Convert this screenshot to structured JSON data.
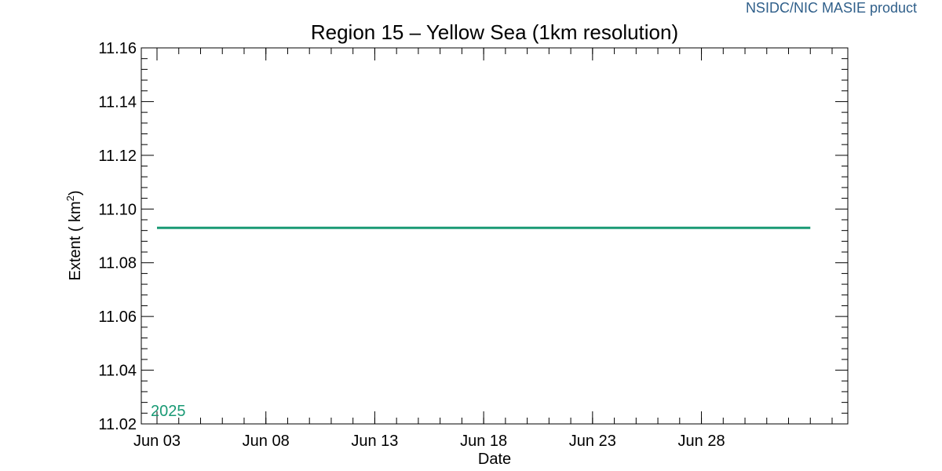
{
  "credit": "NSIDC/NIC MASIE product",
  "chart_data": {
    "type": "line",
    "title": "Region 15 – Yellow Sea (1km resolution)",
    "xlabel": "Date",
    "ylabel_main": "Extent ( km",
    "ylabel_sup": "2",
    "ylabel_end": ")",
    "x_domain": [
      "2025-06-03",
      "2025-07-04"
    ],
    "ylim": [
      11.02,
      11.16
    ],
    "x_ticks": [
      {
        "date": "2025-06-03",
        "label": "Jun 03"
      },
      {
        "date": "2025-06-08",
        "label": "Jun 08"
      },
      {
        "date": "2025-06-13",
        "label": "Jun 13"
      },
      {
        "date": "2025-06-18",
        "label": "Jun 18"
      },
      {
        "date": "2025-06-23",
        "label": "Jun 23"
      },
      {
        "date": "2025-06-28",
        "label": "Jun 28"
      }
    ],
    "y_ticks": [
      "11.02",
      "11.04",
      "11.06",
      "11.08",
      "11.10",
      "11.12",
      "11.14",
      "11.16"
    ],
    "series": [
      {
        "name": "2025",
        "color": "#1a9a75",
        "x": [
          "2025-06-03",
          "2025-07-03"
        ],
        "y": [
          11.093,
          11.093
        ]
      }
    ]
  }
}
